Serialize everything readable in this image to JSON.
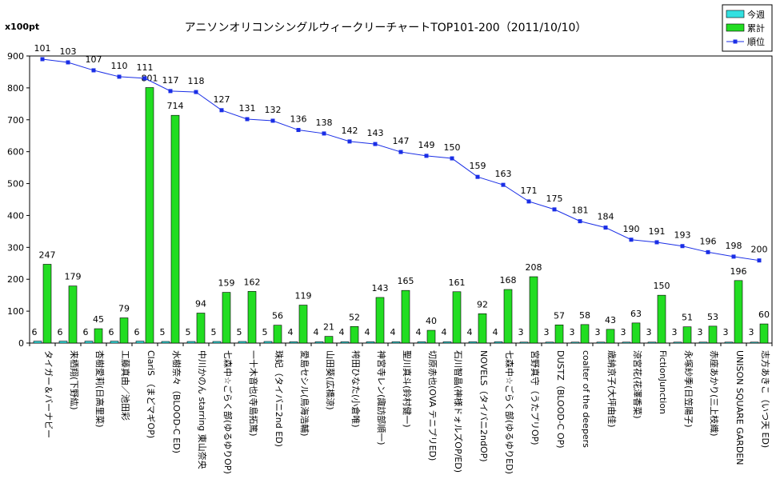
{
  "chart_data": {
    "type": "bar",
    "title": "アニソンオリコンシングルウィークリーチャートTOP101-200（2011/10/10）",
    "ylabel": "x100pt",
    "ylim": [
      0,
      900
    ],
    "yticks": [
      0,
      100,
      200,
      300,
      400,
      500,
      600,
      700,
      800,
      900
    ],
    "grid": false,
    "legend_position": "top-right",
    "categories": [
      "タイガー＆バーナビー",
      "来栖翔(下野紘)",
      "杏樹愛莉(日高里菜)",
      "工藤真由／池田彩",
      "ClariS （まどマギOP)",
      "水樹奈々（BLOOD-C ED)",
      "中川かのん starring 東山奈央",
      "七森中☆ごらく部(ゆるゆりOP)",
      "一十木音也(寺島拓篤)",
      "珠妃（タイバニ2nd ED)",
      "愛島セシル(鳥海浩輔)",
      "山田葵(広橋涼)",
      "袴田ひなた(小倉唯)",
      "神宮寺レン(諏訪部順一)",
      "聖川真斗(鈴村健一)",
      "切原赤也(OVA テニプリED)",
      "石川智晶(神様ドォルズOP/ED)",
      "NOVELS（タイバニ2ndOP)",
      "七森中☆ごらく部(ゆるゆりED)",
      "宮野真守（うたプリOP)",
      "DUSTZ（BLOOD-C OP)",
      "coalter of the deepers",
      "歳納京子(大坪由佳)",
      "涼宮花(花澤香菜)",
      "FictionJunction",
      "永塚紗季(日笠陽子)",
      "赤座あかり(三上枝織)",
      "UNISON SQUARE GARDEN",
      "志方あきこ（いつ天 ED)"
    ],
    "series": [
      {
        "name": "今週",
        "type": "bar",
        "color": "#33e0e0",
        "values": [
          6,
          6,
          6,
          6,
          6,
          5,
          5,
          5,
          5,
          5,
          4,
          4,
          4,
          4,
          4,
          4,
          4,
          4,
          4,
          3,
          3,
          3,
          3,
          3,
          3,
          3,
          3,
          3,
          3
        ]
      },
      {
        "name": "累計",
        "type": "bar",
        "color": "#22dd22",
        "values": [
          247,
          179,
          45,
          79,
          801,
          714,
          94,
          159,
          162,
          56,
          119,
          21,
          52,
          143,
          165,
          40,
          161,
          92,
          168,
          208,
          57,
          58,
          43,
          63,
          150,
          51,
          53,
          196,
          60
        ]
      },
      {
        "name": "順位",
        "type": "line",
        "color": "#1a2ee6",
        "values": [
          101,
          103,
          107,
          110,
          111,
          117,
          118,
          127,
          131,
          132,
          136,
          138,
          142,
          143,
          147,
          149,
          150,
          159,
          163,
          171,
          175,
          181,
          184,
          190,
          191,
          193,
          196,
          198,
          200
        ],
        "plotted_y": [
          890,
          880,
          855,
          835,
          830,
          790,
          787,
          730,
          702,
          697,
          668,
          657,
          632,
          624,
          599,
          587,
          579,
          521,
          496,
          444,
          419,
          382,
          362,
          324,
          316,
          304,
          285,
          271,
          259
        ]
      }
    ]
  }
}
